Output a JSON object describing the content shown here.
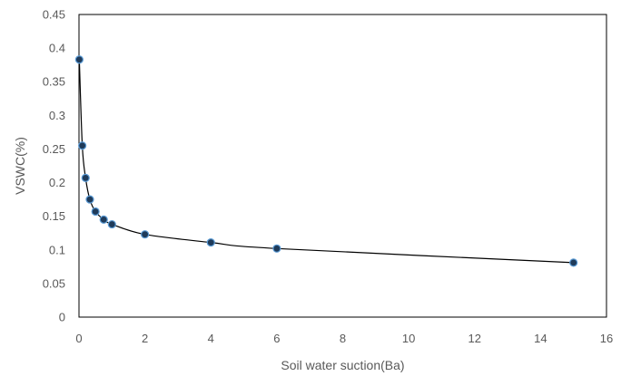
{
  "chart_data": {
    "type": "scatter",
    "title": "",
    "xlabel": "Soil water suction(Ba)",
    "ylabel": "VSWC(%)",
    "xlim": [
      0,
      16
    ],
    "ylim": [
      0,
      0.45
    ],
    "x_ticks": [
      0,
      2,
      4,
      6,
      8,
      10,
      12,
      14,
      16
    ],
    "y_ticks": [
      "0",
      "0.05",
      "0.1",
      "0.15",
      "0.2",
      "0.25",
      "0.3",
      "0.35",
      "0.4",
      "0.45"
    ],
    "grid": false,
    "legend": "none",
    "smooth_line": true,
    "series": [
      {
        "x": [
          0.01,
          0.1,
          0.2,
          0.33,
          0.5,
          0.75,
          1.0,
          2.0,
          4.0,
          6.0,
          15.0
        ],
        "y": [
          0.383,
          0.255,
          0.207,
          0.175,
          0.157,
          0.145,
          0.138,
          0.123,
          0.111,
          0.102,
          0.081
        ]
      }
    ],
    "colors": {
      "marker_fill": "#1f3b5a",
      "marker_stroke": "#5b9bd5",
      "line": "#000000",
      "axis": "#000000",
      "text": "#595959"
    }
  }
}
